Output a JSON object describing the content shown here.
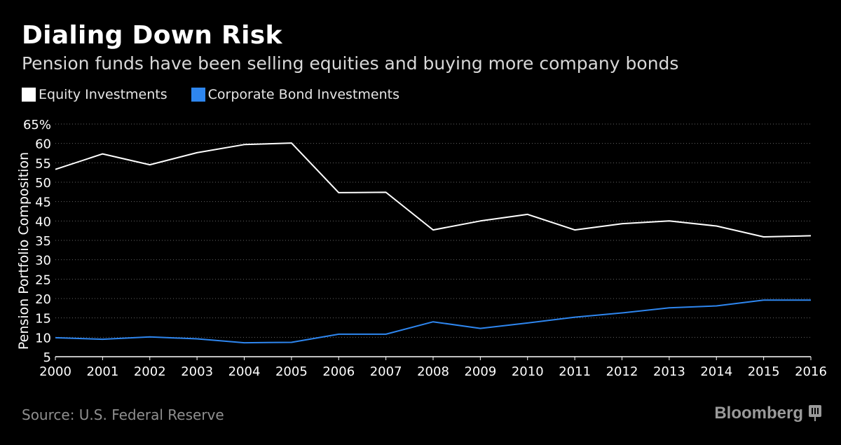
{
  "title": "Dialing Down Risk",
  "subtitle": "Pension funds have been selling equities and buying more company bonds",
  "source": "Source: U.S. Federal Reserve",
  "brand": "Bloomberg",
  "colors": {
    "background": "#000000",
    "equity": "#ffffff",
    "bond": "#2e86ef",
    "grid": "#666666",
    "axis": "#ffffff"
  },
  "chart_data": {
    "type": "line",
    "title": "Dialing Down Risk",
    "subtitle": "Pension funds have been selling equities and buying more company bonds",
    "xlabel": "",
    "ylabel": "Pension Portfolio Composition",
    "x": [
      "2000",
      "2001",
      "2002",
      "2003",
      "2004",
      "2005",
      "2006",
      "2007",
      "2008",
      "2009",
      "2010",
      "2011",
      "2012",
      "2013",
      "2014",
      "2015",
      "2016"
    ],
    "ylim": [
      5,
      65
    ],
    "yticks": [
      "5",
      "10",
      "15",
      "20",
      "25",
      "30",
      "35",
      "40",
      "45",
      "50",
      "55",
      "60",
      "65%"
    ],
    "grid": true,
    "legend_position": "top-left",
    "series": [
      {
        "name": "Equity Investments",
        "color": "#ffffff",
        "values": [
          53.3,
          57.3,
          54.5,
          57.6,
          59.7,
          60.1,
          47.3,
          47.4,
          37.7,
          40.0,
          41.7,
          37.7,
          39.3,
          40.0,
          38.7,
          35.9,
          36.2
        ]
      },
      {
        "name": "Corporate Bond Investments",
        "color": "#2e86ef",
        "values": [
          9.9,
          9.5,
          10.1,
          9.6,
          8.6,
          8.7,
          10.8,
          10.8,
          14.0,
          12.3,
          13.7,
          15.2,
          16.3,
          17.6,
          18.1,
          19.6,
          19.6
        ]
      }
    ]
  }
}
